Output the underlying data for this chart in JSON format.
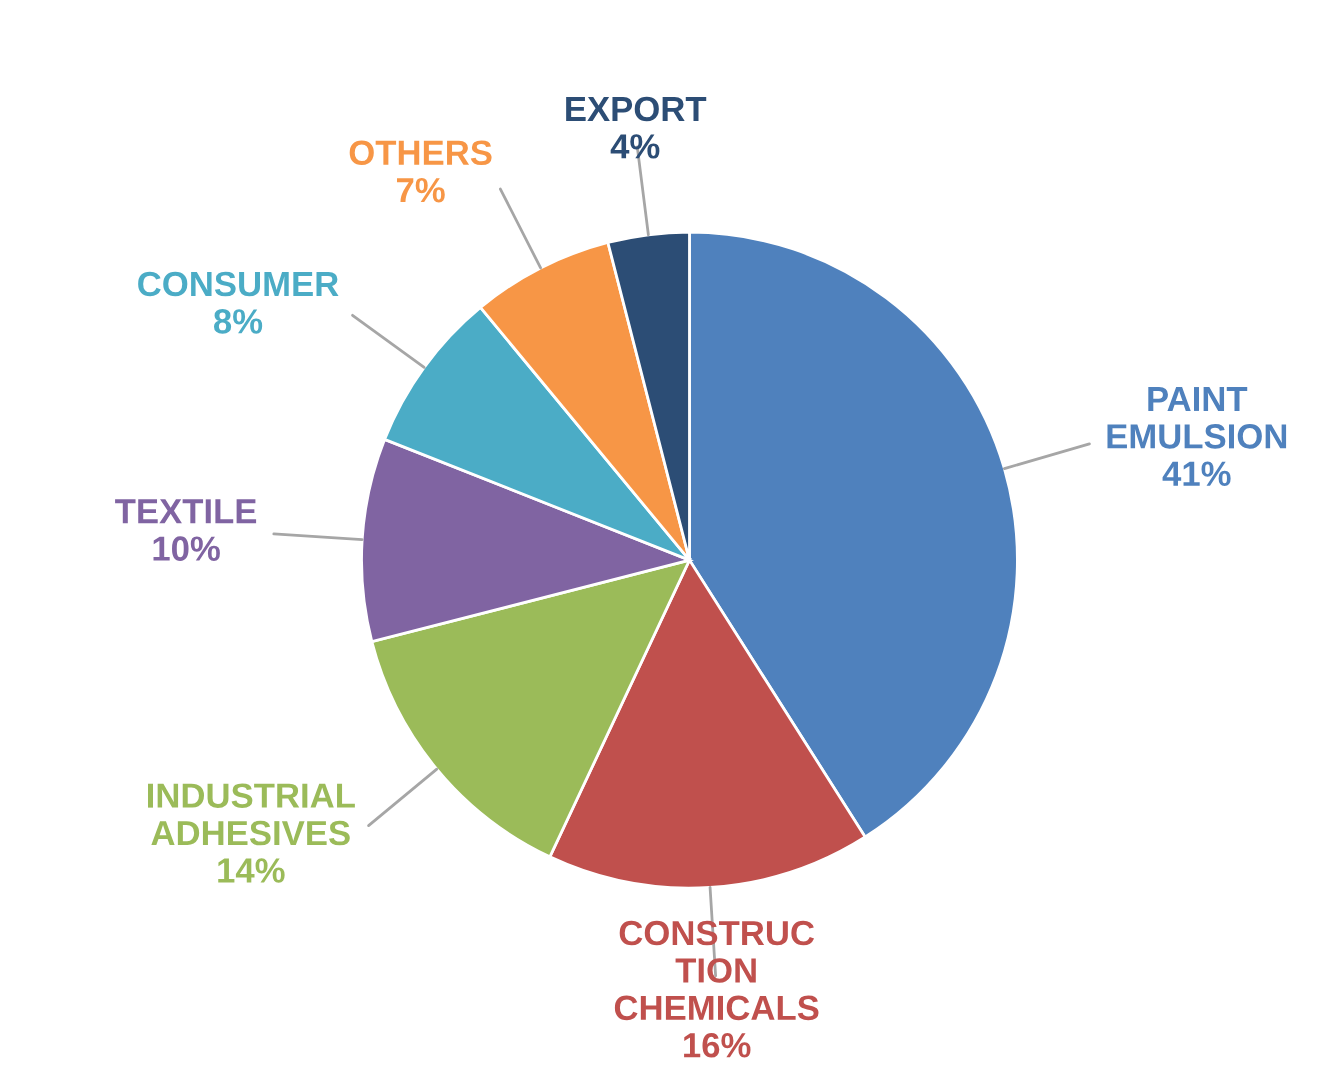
{
  "chart_data": {
    "type": "pie",
    "categories": [
      "PAINT\nEMULSION",
      "CONSTRUC\nTION\nCHEMICALS",
      "INDUSTRIAL\nADHESIVES",
      "TEXTILE",
      "CONSUMER",
      "OTHERS",
      "EXPORT"
    ],
    "values": [
      41,
      16,
      14,
      10,
      8,
      7,
      4
    ],
    "value_labels": [
      "41%",
      "16%",
      "14%",
      "10%",
      "8%",
      "7%",
      "4%"
    ],
    "colors": [
      "#4f81bd",
      "#c0504d",
      "#9bbb59",
      "#8064a2",
      "#4bacc6",
      "#f79646",
      "#2c4d75"
    ]
  }
}
